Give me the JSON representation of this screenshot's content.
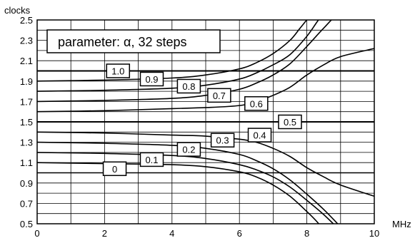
{
  "chart_data": {
    "type": "line",
    "title": "",
    "xlabel": "MHz",
    "ylabel": "clocks",
    "xlim": [
      0,
      10
    ],
    "ylim": [
      0.5,
      2.5
    ],
    "grid": true,
    "x_ticks": [
      0,
      2,
      4,
      6,
      8,
      10
    ],
    "y_ticks": [
      0.5,
      0.7,
      0.9,
      1.1,
      1.3,
      1.5,
      1.7,
      1.9,
      2.1,
      2.3,
      2.5
    ],
    "annotation": "parameter: α, 32 steps",
    "series": [
      {
        "label": "0",
        "x": [
          0,
          1,
          2,
          3,
          4,
          5,
          6,
          7,
          8,
          9,
          10
        ],
        "y": [
          1.0,
          1.0,
          1.0,
          1.0,
          1.0,
          1.0,
          1.0,
          1.0,
          1.0,
          1.0,
          1.0
        ]
      },
      {
        "label": "0.1",
        "x": [
          0,
          2,
          4,
          5,
          6,
          6.5,
          7,
          7.5,
          8,
          8.3,
          8.6
        ],
        "y": [
          1.1,
          1.09,
          1.08,
          1.06,
          1.01,
          0.96,
          0.88,
          0.77,
          0.62,
          0.52,
          0.4
        ]
      },
      {
        "label": "0.2",
        "x": [
          0,
          2,
          4,
          5,
          6,
          6.5,
          7,
          7.5,
          8,
          8.5,
          9
        ],
        "y": [
          1.2,
          1.19,
          1.17,
          1.14,
          1.08,
          1.03,
          0.96,
          0.86,
          0.73,
          0.59,
          0.43
        ]
      },
      {
        "label": "0.3",
        "x": [
          0,
          2,
          4,
          5,
          6,
          6.5,
          7,
          7.5,
          8,
          8.5,
          9
        ],
        "y": [
          1.3,
          1.29,
          1.27,
          1.24,
          1.18,
          1.12,
          1.04,
          0.93,
          0.79,
          0.64,
          0.47
        ]
      },
      {
        "label": "0.4",
        "x": [
          0,
          2,
          4,
          5,
          6,
          6.5,
          7,
          7.5,
          8,
          8.5,
          9,
          10
        ],
        "y": [
          1.4,
          1.39,
          1.37,
          1.36,
          1.33,
          1.3,
          1.24,
          1.16,
          1.05,
          0.96,
          0.88,
          0.77
        ]
      },
      {
        "label": "0.5",
        "x": [
          0,
          10
        ],
        "y": [
          1.5,
          1.5
        ]
      },
      {
        "label": "0.6",
        "x": [
          0,
          2,
          4,
          5,
          6,
          6.5,
          7,
          7.5,
          8,
          8.5,
          9,
          10
        ],
        "y": [
          1.6,
          1.61,
          1.63,
          1.64,
          1.66,
          1.7,
          1.76,
          1.84,
          1.96,
          2.06,
          2.14,
          2.22
        ]
      },
      {
        "label": "0.7",
        "x": [
          0,
          2,
          4,
          5,
          6,
          6.5,
          7,
          7.5,
          8,
          8.5,
          9,
          9.5
        ],
        "y": [
          1.7,
          1.71,
          1.73,
          1.76,
          1.82,
          1.88,
          1.96,
          2.07,
          2.24,
          2.42,
          2.58,
          2.62
        ]
      },
      {
        "label": "0.8",
        "x": [
          0,
          2,
          4,
          5,
          6,
          6.5,
          7,
          7.5,
          8,
          8.3,
          8.6
        ],
        "y": [
          1.8,
          1.81,
          1.83,
          1.86,
          1.92,
          1.98,
          2.06,
          2.16,
          2.34,
          2.48,
          2.62
        ]
      },
      {
        "label": "0.9",
        "x": [
          0,
          2,
          4,
          5,
          6,
          6.5,
          7,
          7.5,
          7.8,
          8.1,
          8.4
        ],
        "y": [
          1.9,
          1.91,
          1.93,
          1.96,
          2.02,
          2.08,
          2.17,
          2.3,
          2.42,
          2.54,
          2.64
        ]
      },
      {
        "label": "1.0",
        "x": [
          0,
          10
        ],
        "y": [
          2.0,
          2.0
        ]
      }
    ],
    "label_positions": [
      {
        "text": "0",
        "x": 2.3,
        "y": 1.04
      },
      {
        "text": "0.1",
        "x": 3.4,
        "y": 1.13
      },
      {
        "text": "0.2",
        "x": 4.5,
        "y": 1.23
      },
      {
        "text": "0.3",
        "x": 5.5,
        "y": 1.32
      },
      {
        "text": "0.4",
        "x": 6.6,
        "y": 1.37
      },
      {
        "text": "0.5",
        "x": 7.5,
        "y": 1.5
      },
      {
        "text": "0.6",
        "x": 6.5,
        "y": 1.68
      },
      {
        "text": "0.7",
        "x": 5.4,
        "y": 1.76
      },
      {
        "text": "0.8",
        "x": 4.5,
        "y": 1.85
      },
      {
        "text": "0.9",
        "x": 3.4,
        "y": 1.92
      },
      {
        "text": "1.0",
        "x": 2.4,
        "y": 2.0
      }
    ]
  }
}
